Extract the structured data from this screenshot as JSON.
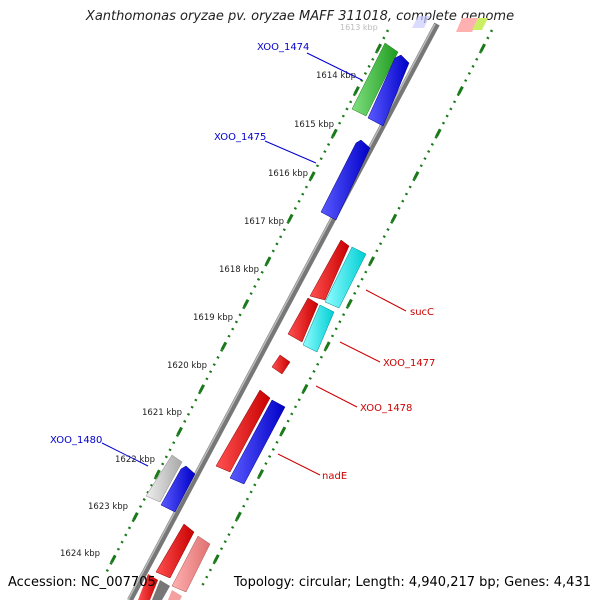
{
  "header": {
    "title": "Xanthomonas oryzae pv. oryzae MAFF 311018, complete genome"
  },
  "footer": {
    "accession": "Accession: NC_007705",
    "summary": "Topology: circular; Length: 4,940,217 bp; Genes: 4,431"
  },
  "axis": {
    "faint_top_tick": "1613 kbp",
    "ticks": [
      {
        "label": "1614 kbp"
      },
      {
        "label": "1615 kbp"
      },
      {
        "label": "1616 kbp"
      },
      {
        "label": "1617 kbp"
      },
      {
        "label": "1618 kbp"
      },
      {
        "label": "1619 kbp"
      },
      {
        "label": "1620 kbp"
      },
      {
        "label": "1621 kbp"
      },
      {
        "label": "1622 kbp"
      },
      {
        "label": "1623 kbp"
      },
      {
        "label": "1624 kbp"
      }
    ]
  },
  "genes": [
    {
      "label": "XOO_1474",
      "color": "#0000cc"
    },
    {
      "label": "XOO_1475",
      "color": "#0000cc"
    },
    {
      "label": "XOO_1480",
      "color": "#0000cc"
    },
    {
      "label": "sucC",
      "color": "#cc0000"
    },
    {
      "label": "XOO_1477",
      "color": "#cc0000"
    },
    {
      "label": "XOO_1478",
      "color": "#cc0000"
    },
    {
      "label": "nadE",
      "color": "#cc0000"
    }
  ],
  "colors": {
    "forward_cds": "#0000ff",
    "reverse_cds": "#ff0000",
    "cyan_feature": "#00e5e5",
    "green_feature": "#33bb33",
    "grey_feature": "#c8c8c8",
    "pink_feature": "#f08888",
    "tick_green": "#1a7a1a",
    "backbone": "#888888"
  }
}
